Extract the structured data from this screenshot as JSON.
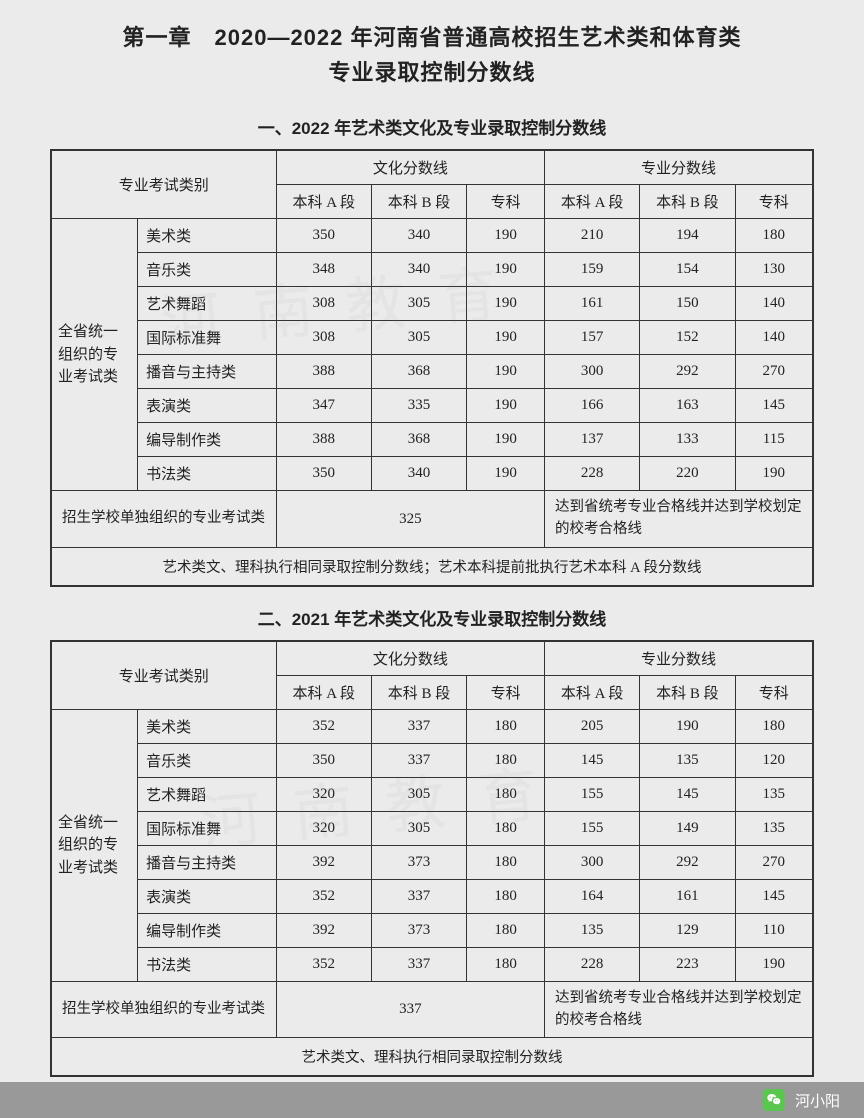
{
  "chapter": {
    "line1": "第一章　2020—2022 年河南省普通高校招生艺术类和体育类",
    "line2": "专业录取控制分数线"
  },
  "sections": [
    {
      "title": "一、2022 年艺术类文化及专业录取控制分数线",
      "header": {
        "exam_type": "专业考试类别",
        "culture": "文化分数线",
        "major": "专业分数线",
        "cols": [
          "本科 A 段",
          "本科 B 段",
          "专科",
          "本科 A 段",
          "本科 B 段",
          "专科"
        ]
      },
      "group_label": "全省统一组织的专业考试类",
      "rows": [
        {
          "name": "美术类",
          "v": [
            "350",
            "340",
            "190",
            "210",
            "194",
            "180"
          ]
        },
        {
          "name": "音乐类",
          "v": [
            "348",
            "340",
            "190",
            "159",
            "154",
            "130"
          ]
        },
        {
          "name": "艺术舞蹈",
          "v": [
            "308",
            "305",
            "190",
            "161",
            "150",
            "140"
          ]
        },
        {
          "name": "国际标准舞",
          "v": [
            "308",
            "305",
            "190",
            "157",
            "152",
            "140"
          ]
        },
        {
          "name": "播音与主持类",
          "v": [
            "388",
            "368",
            "190",
            "300",
            "292",
            "270"
          ]
        },
        {
          "name": "表演类",
          "v": [
            "347",
            "335",
            "190",
            "166",
            "163",
            "145"
          ]
        },
        {
          "name": "编导制作类",
          "v": [
            "388",
            "368",
            "190",
            "137",
            "133",
            "115"
          ]
        },
        {
          "name": "书法类",
          "v": [
            "350",
            "340",
            "190",
            "228",
            "220",
            "190"
          ]
        }
      ],
      "school_row": {
        "label": "招生学校单独组织的专业考试类",
        "culture_value": "325",
        "major_note": "达到省统考专业合格线并达到学校划定的校考合格线"
      },
      "footer_note": "艺术类文、理科执行相同录取控制分数线；艺术本科提前批执行艺术本科 A 段分数线"
    },
    {
      "title": "二、2021 年艺术类文化及专业录取控制分数线",
      "header": {
        "exam_type": "专业考试类别",
        "culture": "文化分数线",
        "major": "专业分数线",
        "cols": [
          "本科 A 段",
          "本科 B 段",
          "专科",
          "本科 A 段",
          "本科 B 段",
          "专科"
        ]
      },
      "group_label": "全省统一组织的专业考试类",
      "rows": [
        {
          "name": "美术类",
          "v": [
            "352",
            "337",
            "180",
            "205",
            "190",
            "180"
          ]
        },
        {
          "name": "音乐类",
          "v": [
            "350",
            "337",
            "180",
            "145",
            "135",
            "120"
          ]
        },
        {
          "name": "艺术舞蹈",
          "v": [
            "320",
            "305",
            "180",
            "155",
            "145",
            "135"
          ]
        },
        {
          "name": "国际标准舞",
          "v": [
            "320",
            "305",
            "180",
            "155",
            "149",
            "135"
          ]
        },
        {
          "name": "播音与主持类",
          "v": [
            "392",
            "373",
            "180",
            "300",
            "292",
            "270"
          ]
        },
        {
          "name": "表演类",
          "v": [
            "352",
            "337",
            "180",
            "164",
            "161",
            "145"
          ]
        },
        {
          "name": "编导制作类",
          "v": [
            "392",
            "373",
            "180",
            "135",
            "129",
            "110"
          ]
        },
        {
          "name": "书法类",
          "v": [
            "352",
            "337",
            "180",
            "228",
            "223",
            "190"
          ]
        }
      ],
      "school_row": {
        "label": "招生学校单独组织的专业考试类",
        "culture_value": "337",
        "major_note": "达到省统考专业合格线并达到学校划定的校考合格线"
      },
      "footer_note": "艺术类文、理科执行相同录取控制分数线"
    }
  ],
  "footer": {
    "source": "河小阳"
  },
  "colors": {
    "page_bg": "#ebebeb",
    "border": "#333333",
    "text": "#222222",
    "footer_bg": "#999999",
    "footer_text": "#ffffff",
    "wechat_green": "#5ac64f"
  },
  "column_widths_pct": [
    10,
    16,
    11,
    11,
    9,
    11,
    11,
    9
  ]
}
